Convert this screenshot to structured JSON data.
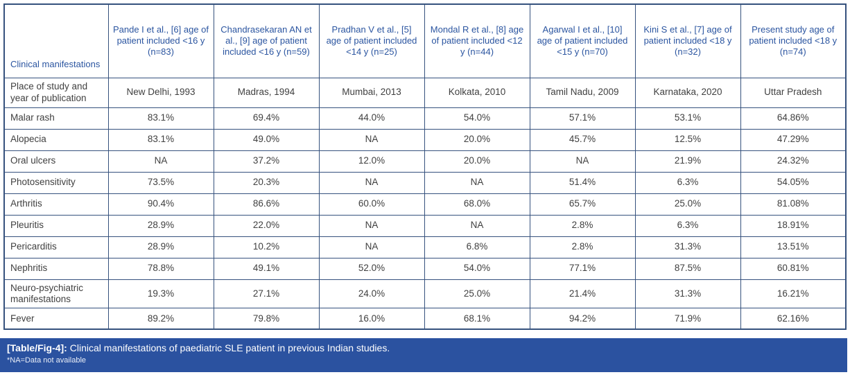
{
  "colors": {
    "border": "#35517d",
    "header_text": "#2b55a0",
    "cell_text": "#3f3f3f",
    "caption_bg": "#2b52a0",
    "caption_text": "#ffffff"
  },
  "table": {
    "corner_label": "Clinical manifestations",
    "column_headers": [
      "Pande I et al., [6] age of patient included <16 y (n=83)",
      "Chandrasekaran AN et al., [9] age of patient included <16 y (n=59)",
      "Pradhan V et al., [5] age of patient included <14 y (n=25)",
      "Mondal R et al., [8] age of patient included <12 y (n=44)",
      "Agarwal I et al., [10] age of patient included <15 y (n=70)",
      "Kini S et al., [7] age of patient included <18 y (n=32)",
      "Present study age of patient included <18 y (n=74)"
    ],
    "rows": [
      {
        "label": "Place of study and year of publication",
        "values": [
          "New Delhi, 1993",
          "Madras, 1994",
          "Mumbai, 2013",
          "Kolkata, 2010",
          "Tamil Nadu, 2009",
          "Karnataka, 2020",
          "Uttar Pradesh"
        ]
      },
      {
        "label": "Malar rash",
        "values": [
          "83.1%",
          "69.4%",
          "44.0%",
          "54.0%",
          "57.1%",
          "53.1%",
          "64.86%"
        ]
      },
      {
        "label": "Alopecia",
        "values": [
          "83.1%",
          "49.0%",
          "NA",
          "20.0%",
          "45.7%",
          "12.5%",
          "47.29%"
        ]
      },
      {
        "label": "Oral ulcers",
        "values": [
          "NA",
          "37.2%",
          "12.0%",
          "20.0%",
          "NA",
          "21.9%",
          "24.32%"
        ]
      },
      {
        "label": "Photosensitivity",
        "values": [
          "73.5%",
          "20.3%",
          "NA",
          "NA",
          "51.4%",
          "6.3%",
          "54.05%"
        ]
      },
      {
        "label": "Arthritis",
        "values": [
          "90.4%",
          "86.6%",
          "60.0%",
          "68.0%",
          "65.7%",
          "25.0%",
          "81.08%"
        ]
      },
      {
        "label": "Pleuritis",
        "values": [
          "28.9%",
          "22.0%",
          "NA",
          "NA",
          "2.8%",
          "6.3%",
          "18.91%"
        ]
      },
      {
        "label": "Pericarditis",
        "values": [
          "28.9%",
          "10.2%",
          "NA",
          "6.8%",
          "2.8%",
          "31.3%",
          "13.51%"
        ]
      },
      {
        "label": "Nephritis",
        "values": [
          "78.8%",
          "49.1%",
          "52.0%",
          "54.0%",
          "77.1%",
          "87.5%",
          "60.81%"
        ]
      },
      {
        "label": "Neuro-psychiatric manifestations",
        "values": [
          "19.3%",
          "27.1%",
          "24.0%",
          "25.0%",
          "21.4%",
          "31.3%",
          "16.21%"
        ]
      },
      {
        "label": "Fever",
        "values": [
          "89.2%",
          "79.8%",
          "16.0%",
          "68.1%",
          "94.2%",
          "71.9%",
          "62.16%"
        ]
      }
    ]
  },
  "caption": {
    "tag": "[Table/Fig-4]:",
    "text": "Clinical manifestations of paediatric SLE patient in previous Indian studies.",
    "footnote": "*NA=Data not available"
  }
}
